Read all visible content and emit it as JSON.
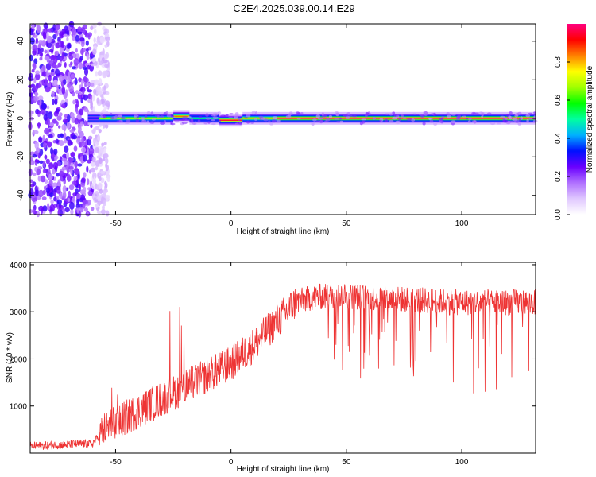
{
  "figure": {
    "title": "C2E4.2025.039.00.14.E29"
  },
  "chart_data": [
    {
      "type": "heatmap",
      "xlabel": "Height of straight line (km)",
      "ylabel": "Frequency (Hz)",
      "xlim": [
        -87,
        132
      ],
      "ylim": [
        -50,
        49
      ],
      "x_ticks": [
        -50,
        0,
        50,
        100
      ],
      "y_ticks": [
        -40,
        -20,
        0,
        20,
        40
      ],
      "colorbar": {
        "label": "Normalized spectral amplitude",
        "range": [
          0,
          1
        ],
        "ticks": [
          "0.0",
          "0.2",
          "0.4",
          "0.6",
          "0.8"
        ],
        "tick_values": [
          0,
          0.2,
          0.4,
          0.6,
          0.8
        ],
        "colors": [
          "#ffffff",
          "#e0c8ff",
          "#b070ff",
          "#6a00ff",
          "#0010ff",
          "#00b0ff",
          "#00ffa0",
          "#00ff00",
          "#a0ff00",
          "#ffff00",
          "#ff8000",
          "#ff0000",
          "#ff0080"
        ]
      },
      "noise_region_x": [
        -87,
        -57
      ],
      "signal_segments": [
        {
          "x": [
            -62,
            -57
          ],
          "freq": 0,
          "amplitude": 0.35
        },
        {
          "x": [
            -57,
            -25
          ],
          "freq": 0,
          "amplitude": 0.75
        },
        {
          "x": [
            -25,
            -18
          ],
          "freq": 1,
          "amplitude": 0.85
        },
        {
          "x": [
            -18,
            -5
          ],
          "freq": 0,
          "amplitude": 0.55
        },
        {
          "x": [
            -5,
            5
          ],
          "freq": -1,
          "amplitude": 0.95
        },
        {
          "x": [
            5,
            20
          ],
          "freq": 0,
          "amplitude": 0.8
        },
        {
          "x": [
            20,
            132
          ],
          "freq": 0,
          "amplitude": 1.0
        }
      ]
    },
    {
      "type": "line",
      "xlabel": "Height of straight line (km)",
      "ylabel": "SNR (10 * v/v)",
      "xlim": [
        -87,
        132
      ],
      "ylim": [
        0,
        4050
      ],
      "x_ticks": [
        -50,
        0,
        50,
        100
      ],
      "y_ticks": [
        1000,
        2000,
        3000,
        4000
      ],
      "series": [
        {
          "color": "#ee3333",
          "trend": [
            {
              "x": -87,
              "y": 150
            },
            {
              "x": -60,
              "y": 200
            },
            {
              "x": -55,
              "y": 500
            },
            {
              "x": -40,
              "y": 900
            },
            {
              "x": -20,
              "y": 1400
            },
            {
              "x": 0,
              "y": 1900
            },
            {
              "x": 10,
              "y": 2300
            },
            {
              "x": 20,
              "y": 2800
            },
            {
              "x": 28,
              "y": 3200
            },
            {
              "x": 35,
              "y": 3300
            },
            {
              "x": 45,
              "y": 3350
            },
            {
              "x": 60,
              "y": 3300
            },
            {
              "x": 80,
              "y": 3250
            },
            {
              "x": 100,
              "y": 3200
            },
            {
              "x": 132,
              "y": 3200
            }
          ]
        }
      ]
    }
  ]
}
